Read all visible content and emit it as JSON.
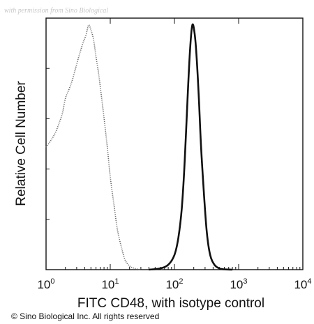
{
  "watermark": "with permission from Sino Biological",
  "copyright": "© Sino Biological Inc. All rights reserved",
  "chart_data": {
    "type": "line",
    "title": "",
    "xlabel": "FITC CD48, with isotype control",
    "ylabel": "Relative Cell Number",
    "x_scale": "log",
    "xlim": [
      1,
      10000
    ],
    "ylim": [
      0,
      1
    ],
    "x_ticks": [
      {
        "base": "10",
        "exp": "0"
      },
      {
        "base": "10",
        "exp": "1"
      },
      {
        "base": "10",
        "exp": "2"
      },
      {
        "base": "10",
        "exp": "3"
      },
      {
        "base": "10",
        "exp": "4"
      }
    ],
    "grid": false,
    "series": [
      {
        "style": "dotted",
        "color": "#666666",
        "x": [
          1.0,
          1.2,
          1.4,
          1.6,
          1.8,
          2.0,
          2.3,
          2.6,
          3.0,
          3.4,
          3.8,
          4.2,
          4.6,
          5.0,
          5.5,
          6.0,
          6.6,
          7.2,
          8.0,
          9.0,
          10.0,
          11.5,
          13.0,
          15.0,
          17.0,
          20.0,
          24.0,
          30.0
        ],
        "y": [
          0.5,
          0.53,
          0.56,
          0.6,
          0.64,
          0.7,
          0.74,
          0.78,
          0.84,
          0.89,
          0.93,
          0.96,
          1.0,
          0.98,
          0.94,
          0.87,
          0.8,
          0.72,
          0.62,
          0.5,
          0.38,
          0.26,
          0.16,
          0.09,
          0.04,
          0.015,
          0.005,
          0.0
        ]
      },
      {
        "style": "solid",
        "color": "#111111",
        "x": [
          40,
          60,
          80,
          100,
          115,
          130,
          145,
          160,
          175,
          190,
          205,
          220,
          240,
          260,
          290,
          320,
          360,
          420,
          500,
          600,
          800
        ],
        "y": [
          0.0,
          0.005,
          0.02,
          0.06,
          0.13,
          0.25,
          0.45,
          0.7,
          0.9,
          1.0,
          0.97,
          0.88,
          0.7,
          0.5,
          0.3,
          0.15,
          0.06,
          0.02,
          0.005,
          0.001,
          0.0
        ]
      }
    ]
  }
}
